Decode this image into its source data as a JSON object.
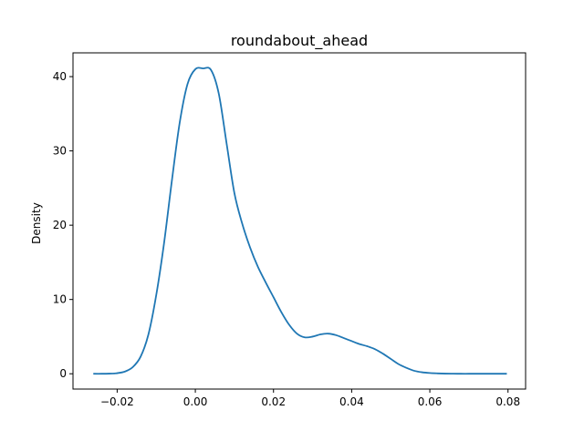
{
  "chart_data": {
    "type": "line",
    "title": "roundabout_ahead",
    "xlabel": "",
    "ylabel": "Density",
    "xlim": [
      -0.0313,
      0.0845
    ],
    "ylim": [
      -2.06,
      43.2
    ],
    "xticks": [
      -0.02,
      0.0,
      0.02,
      0.04,
      0.06,
      0.08
    ],
    "xtick_labels": [
      "−0.02",
      "0.00",
      "0.02",
      "0.04",
      "0.06",
      "0.08"
    ],
    "yticks": [
      0,
      10,
      20,
      30,
      40
    ],
    "ytick_labels": [
      "0",
      "10",
      "20",
      "30",
      "40"
    ],
    "grid": false,
    "series": [
      {
        "color": "#1f77b4",
        "x": [
          -0.0261,
          -0.024,
          -0.022,
          -0.02,
          -0.018,
          -0.016,
          -0.014,
          -0.012,
          -0.01,
          -0.008,
          -0.006,
          -0.004,
          -0.002,
          0.0,
          0.002,
          0.004,
          0.006,
          0.008,
          0.01,
          0.012,
          0.014,
          0.016,
          0.018,
          0.02,
          0.022,
          0.024,
          0.026,
          0.028,
          0.03,
          0.032,
          0.034,
          0.036,
          0.038,
          0.04,
          0.042,
          0.044,
          0.046,
          0.048,
          0.05,
          0.052,
          0.054,
          0.056,
          0.058,
          0.06,
          0.062,
          0.064,
          0.066,
          0.068,
          0.07,
          0.072,
          0.074,
          0.076,
          0.0797
        ],
        "y": [
          0.0,
          0.0,
          0.02,
          0.08,
          0.3,
          0.9,
          2.3,
          5.3,
          10.6,
          17.6,
          26.0,
          33.8,
          39.0,
          41.0,
          41.1,
          40.9,
          37.7,
          31.0,
          24.3,
          20.2,
          17.0,
          14.4,
          12.3,
          10.3,
          8.3,
          6.6,
          5.4,
          4.9,
          5.0,
          5.3,
          5.4,
          5.2,
          4.8,
          4.4,
          4.0,
          3.7,
          3.3,
          2.7,
          2.0,
          1.3,
          0.8,
          0.4,
          0.2,
          0.1,
          0.05,
          0.02,
          0.01,
          0.0,
          0.0,
          0.0,
          0.0,
          0.0,
          0.0
        ]
      }
    ]
  }
}
